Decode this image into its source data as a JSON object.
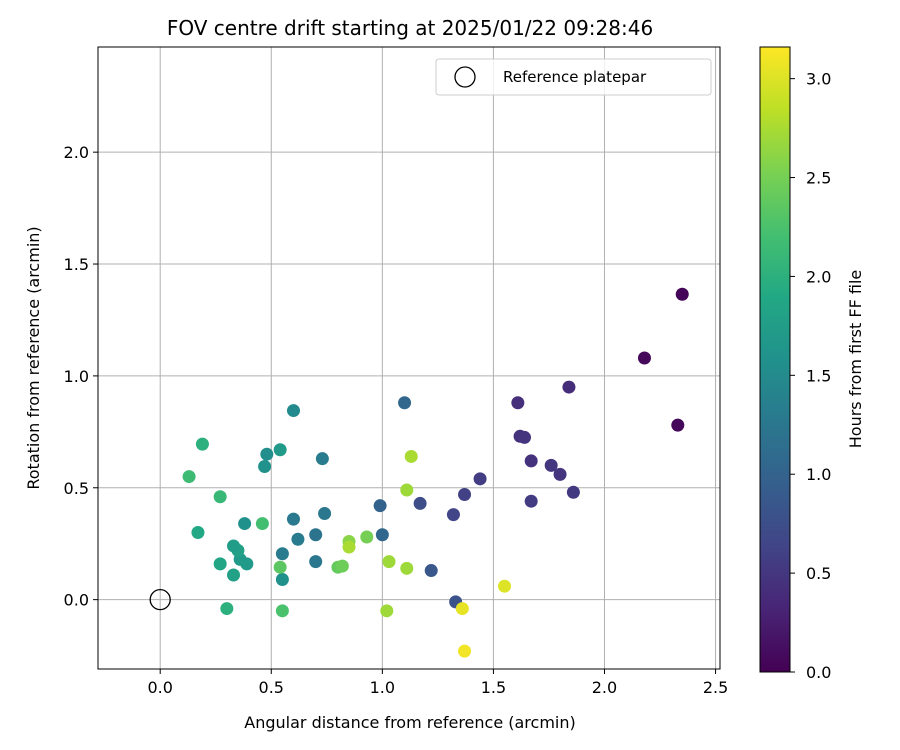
{
  "chart_data": {
    "type": "scatter",
    "title": "FOV centre drift starting at 2025/01/22 09:28:46",
    "xlabel": "Angular distance from reference (arcmin)",
    "ylabel": "Rotation from reference (arcmin)",
    "xlim": [
      -0.28,
      2.52
    ],
    "ylim": [
      -0.31,
      2.47
    ],
    "x_ticks": [
      0.0,
      0.5,
      1.0,
      1.5,
      2.0,
      2.5
    ],
    "y_ticks": [
      0.0,
      0.5,
      1.0,
      1.5,
      2.0
    ],
    "grid": true,
    "legend": {
      "position": "top-right",
      "entries": [
        "Reference platepar"
      ]
    },
    "reference": {
      "x": 0.0,
      "y": 0.0,
      "label": "Reference platepar"
    },
    "colorbar": {
      "label": "Hours from first FF file",
      "colormap": "viridis",
      "range": [
        0.0,
        3.16
      ],
      "ticks": [
        0.0,
        0.5,
        1.0,
        1.5,
        2.0,
        2.5,
        3.0
      ]
    },
    "points": [
      {
        "x": 2.35,
        "y": 1.365,
        "c": 0.03
      },
      {
        "x": 2.18,
        "y": 1.08,
        "c": 0.06
      },
      {
        "x": 2.33,
        "y": 0.78,
        "c": 0.05
      },
      {
        "x": 1.84,
        "y": 0.95,
        "c": 0.4
      },
      {
        "x": 1.61,
        "y": 0.88,
        "c": 0.42
      },
      {
        "x": 1.62,
        "y": 0.73,
        "c": 0.45
      },
      {
        "x": 1.64,
        "y": 0.725,
        "c": 0.47
      },
      {
        "x": 1.67,
        "y": 0.62,
        "c": 0.45
      },
      {
        "x": 1.76,
        "y": 0.6,
        "c": 0.5
      },
      {
        "x": 1.8,
        "y": 0.56,
        "c": 0.48
      },
      {
        "x": 1.86,
        "y": 0.48,
        "c": 0.52
      },
      {
        "x": 1.67,
        "y": 0.44,
        "c": 0.55
      },
      {
        "x": 1.44,
        "y": 0.54,
        "c": 0.56
      },
      {
        "x": 1.37,
        "y": 0.47,
        "c": 0.6
      },
      {
        "x": 1.32,
        "y": 0.38,
        "c": 0.65
      },
      {
        "x": 1.17,
        "y": 0.43,
        "c": 0.75
      },
      {
        "x": 1.22,
        "y": 0.13,
        "c": 0.85
      },
      {
        "x": 1.33,
        "y": -0.01,
        "c": 0.8
      },
      {
        "x": 1.1,
        "y": 0.88,
        "c": 1.05
      },
      {
        "x": 0.99,
        "y": 0.42,
        "c": 1.0
      },
      {
        "x": 1.0,
        "y": 0.29,
        "c": 1.05
      },
      {
        "x": 0.74,
        "y": 0.385,
        "c": 1.25
      },
      {
        "x": 0.73,
        "y": 0.63,
        "c": 1.3
      },
      {
        "x": 0.7,
        "y": 0.29,
        "c": 1.2
      },
      {
        "x": 0.7,
        "y": 0.17,
        "c": 1.25
      },
      {
        "x": 0.62,
        "y": 0.27,
        "c": 1.3
      },
      {
        "x": 0.6,
        "y": 0.36,
        "c": 1.28
      },
      {
        "x": 0.55,
        "y": 0.205,
        "c": 1.3
      },
      {
        "x": 0.6,
        "y": 0.845,
        "c": 1.5
      },
      {
        "x": 0.55,
        "y": 0.09,
        "c": 1.6
      },
      {
        "x": 0.48,
        "y": 0.65,
        "c": 1.55
      },
      {
        "x": 0.47,
        "y": 0.595,
        "c": 1.6
      },
      {
        "x": 0.54,
        "y": 0.67,
        "c": 1.7
      },
      {
        "x": 0.38,
        "y": 0.34,
        "c": 1.6
      },
      {
        "x": 0.39,
        "y": 0.16,
        "c": 1.7
      },
      {
        "x": 0.36,
        "y": 0.18,
        "c": 1.7
      },
      {
        "x": 0.35,
        "y": 0.22,
        "c": 1.8
      },
      {
        "x": 0.33,
        "y": 0.24,
        "c": 1.75
      },
      {
        "x": 0.33,
        "y": 0.11,
        "c": 1.8
      },
      {
        "x": 0.27,
        "y": 0.16,
        "c": 1.85
      },
      {
        "x": 0.17,
        "y": 0.3,
        "c": 1.9
      },
      {
        "x": 0.19,
        "y": 0.695,
        "c": 2.0
      },
      {
        "x": 0.3,
        "y": -0.04,
        "c": 2.0
      },
      {
        "x": 0.27,
        "y": 0.46,
        "c": 2.1
      },
      {
        "x": 0.13,
        "y": 0.55,
        "c": 2.15
      },
      {
        "x": 0.46,
        "y": 0.34,
        "c": 2.2
      },
      {
        "x": 0.55,
        "y": -0.05,
        "c": 2.25
      },
      {
        "x": 0.54,
        "y": 0.145,
        "c": 2.35
      },
      {
        "x": 0.8,
        "y": 0.145,
        "c": 2.4
      },
      {
        "x": 0.82,
        "y": 0.15,
        "c": 2.45
      },
      {
        "x": 0.85,
        "y": 0.26,
        "c": 2.6
      },
      {
        "x": 0.93,
        "y": 0.28,
        "c": 2.5
      },
      {
        "x": 0.85,
        "y": 0.235,
        "c": 2.75
      },
      {
        "x": 1.03,
        "y": 0.17,
        "c": 2.7
      },
      {
        "x": 1.02,
        "y": -0.05,
        "c": 2.7
      },
      {
        "x": 1.11,
        "y": 0.14,
        "c": 2.7
      },
      {
        "x": 1.11,
        "y": 0.49,
        "c": 2.7
      },
      {
        "x": 1.13,
        "y": 0.64,
        "c": 2.75
      },
      {
        "x": 1.36,
        "y": -0.04,
        "c": 3.05
      },
      {
        "x": 1.37,
        "y": -0.23,
        "c": 3.1
      },
      {
        "x": 1.55,
        "y": 0.06,
        "c": 3.0
      }
    ]
  }
}
